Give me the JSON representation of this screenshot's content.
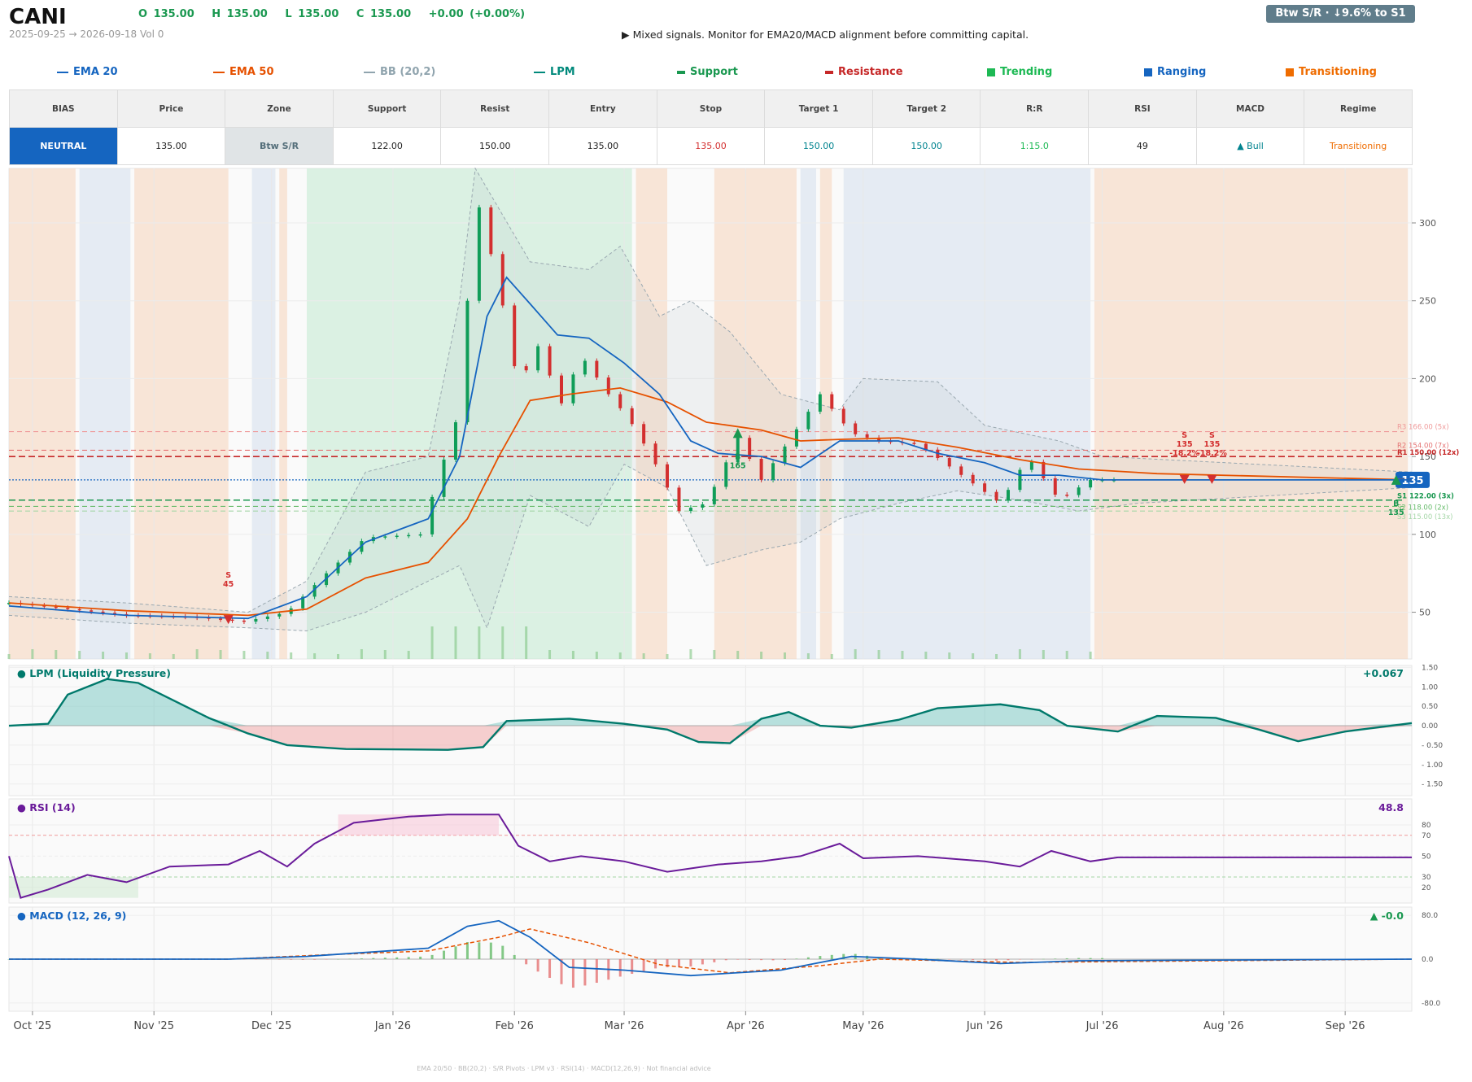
{
  "header": {
    "ticker": "CANI",
    "ohlc": {
      "o": "O 135.00",
      "h": "H 135.00",
      "l": "L 135.00",
      "c": "C 135.00",
      "chg": "+0.00  (+0.00%)"
    },
    "dates": "2025-09-25 → 2026-09-18   Vol 0",
    "signal": "▶  Mixed signals. Monitor for EMA20/MACD alignment before committing capital.",
    "badge": "Btw S/R  ·  ↓9.6% to S1"
  },
  "legend": [
    {
      "label": "EMA 20",
      "color": "#1565c0",
      "kind": "line"
    },
    {
      "label": "EMA 50",
      "color": "#e65100",
      "kind": "line"
    },
    {
      "label": "BB (20,2)",
      "color": "#90a4ae",
      "kind": "line"
    },
    {
      "label": "LPM",
      "color": "#00897b",
      "kind": "line"
    },
    {
      "label": "Support",
      "color": "#1a9850",
      "kind": "dash"
    },
    {
      "label": "Resistance",
      "color": "#c62828",
      "kind": "dash"
    },
    {
      "label": "Trending",
      "color": "#1db954",
      "kind": "box"
    },
    {
      "label": "Ranging",
      "color": "#1565c0",
      "kind": "box"
    },
    {
      "label": "Transitioning",
      "color": "#ef6c00",
      "kind": "box"
    }
  ],
  "summary": {
    "headers": [
      "BIAS",
      "Price",
      "Zone",
      "Support",
      "Resist",
      "Entry",
      "Stop",
      "Target 1",
      "Target 2",
      "R:R",
      "RSI",
      "MACD",
      "Regime"
    ],
    "values": [
      "NEUTRAL",
      "135.00",
      "Btw S/R",
      "122.00",
      "150.00",
      "135.00",
      "135.00",
      "150.00",
      "150.00",
      "1:15.0",
      "49",
      "▲ Bull",
      "Transitioning"
    ],
    "colors": [
      "#ffffff",
      "#222222",
      "#546e7a",
      "#222222",
      "#222222",
      "#222222",
      "#d32f2f",
      "#00838f",
      "#00838f",
      "#1db954",
      "#222222",
      "#00838f",
      "#ef6c00"
    ]
  },
  "chart_data": {
    "type": "candlestick",
    "x_range": [
      "2025-09-25",
      "2026-09-18"
    ],
    "x_ticks": [
      "Oct '25",
      "Nov '25",
      "Dec '25",
      "Jan '26",
      "Feb '26",
      "Mar '26",
      "Apr '26",
      "May '26",
      "Jun '26",
      "Jul '26",
      "Aug '26",
      "Sep '26"
    ],
    "price_axis": {
      "ylim": [
        20,
        335
      ],
      "ticks": [
        50,
        100,
        150,
        200,
        250,
        300
      ]
    },
    "last_price_label": "135",
    "close_points": [
      [
        "2025-09-25",
        56
      ],
      [
        "2025-10-10",
        52
      ],
      [
        "2025-10-25",
        48
      ],
      [
        "2025-11-10",
        47
      ],
      [
        "2025-11-24",
        44
      ],
      [
        "2025-12-05",
        50
      ],
      [
        "2025-12-15",
        75
      ],
      [
        "2025-12-25",
        98
      ],
      [
        "2026-01-08",
        100
      ],
      [
        "2026-01-18",
        180
      ],
      [
        "2026-01-22",
        320
      ],
      [
        "2026-01-28",
        260
      ],
      [
        "2026-02-02",
        195
      ],
      [
        "2026-02-08",
        226
      ],
      [
        "2026-02-12",
        178
      ],
      [
        "2026-02-18",
        215
      ],
      [
        "2026-02-25",
        190
      ],
      [
        "2026-03-02",
        175
      ],
      [
        "2026-03-08",
        150
      ],
      [
        "2026-03-15",
        115
      ],
      [
        "2026-03-22",
        120
      ],
      [
        "2026-03-30",
        162
      ],
      [
        "2026-04-05",
        135
      ],
      [
        "2026-04-12",
        160
      ],
      [
        "2026-04-20",
        190
      ],
      [
        "2026-04-28",
        165
      ],
      [
        "2026-05-05",
        160
      ],
      [
        "2026-05-15",
        158
      ],
      [
        "2026-05-25",
        140
      ],
      [
        "2026-06-05",
        120
      ],
      [
        "2026-06-12",
        150
      ],
      [
        "2026-06-20",
        122
      ],
      [
        "2026-06-28",
        135
      ],
      [
        "2026-09-18",
        135
      ]
    ],
    "ema20_points": [
      [
        "2025-09-25",
        54
      ],
      [
        "2025-10-25",
        48
      ],
      [
        "2025-11-25",
        46
      ],
      [
        "2025-12-10",
        60
      ],
      [
        "2025-12-25",
        95
      ],
      [
        "2026-01-10",
        110
      ],
      [
        "2026-01-18",
        150
      ],
      [
        "2026-01-25",
        240
      ],
      [
        "2026-01-30",
        265
      ],
      [
        "2026-02-05",
        248
      ],
      [
        "2026-02-12",
        228
      ],
      [
        "2026-02-20",
        226
      ],
      [
        "2026-03-01",
        210
      ],
      [
        "2026-03-10",
        190
      ],
      [
        "2026-03-18",
        160
      ],
      [
        "2026-03-25",
        152
      ],
      [
        "2026-04-05",
        150
      ],
      [
        "2026-04-15",
        143
      ],
      [
        "2026-04-25",
        160
      ],
      [
        "2026-05-10",
        160
      ],
      [
        "2026-05-20",
        152
      ],
      [
        "2026-06-01",
        146
      ],
      [
        "2026-06-10",
        138
      ],
      [
        "2026-06-20",
        138
      ],
      [
        "2026-07-01",
        135
      ],
      [
        "2026-09-18",
        135
      ]
    ],
    "ema50_points": [
      [
        "2025-09-25",
        56
      ],
      [
        "2025-10-25",
        51
      ],
      [
        "2025-11-25",
        48
      ],
      [
        "2025-12-10",
        52
      ],
      [
        "2025-12-25",
        72
      ],
      [
        "2026-01-10",
        82
      ],
      [
        "2026-01-20",
        110
      ],
      [
        "2026-01-28",
        150
      ],
      [
        "2026-02-05",
        186
      ],
      [
        "2026-02-15",
        190
      ],
      [
        "2026-02-28",
        194
      ],
      [
        "2026-03-12",
        185
      ],
      [
        "2026-03-22",
        172
      ],
      [
        "2026-04-05",
        167
      ],
      [
        "2026-04-15",
        160
      ],
      [
        "2026-04-25",
        161
      ],
      [
        "2026-05-10",
        162
      ],
      [
        "2026-05-25",
        156
      ],
      [
        "2026-06-10",
        148
      ],
      [
        "2026-06-25",
        142
      ],
      [
        "2026-07-15",
        139
      ],
      [
        "2026-09-18",
        135
      ]
    ],
    "bb_upper_points": [
      [
        "2025-09-25",
        60
      ],
      [
        "2025-10-25",
        56
      ],
      [
        "2025-11-25",
        50
      ],
      [
        "2025-12-10",
        70
      ],
      [
        "2025-12-25",
        140
      ],
      [
        "2026-01-10",
        150
      ],
      [
        "2026-01-18",
        250
      ],
      [
        "2026-01-22",
        335
      ],
      [
        "2026-02-05",
        275
      ],
      [
        "2026-02-20",
        270
      ],
      [
        "2026-02-28",
        285
      ],
      [
        "2026-03-10",
        240
      ],
      [
        "2026-03-18",
        250
      ],
      [
        "2026-03-28",
        230
      ],
      [
        "2026-04-10",
        190
      ],
      [
        "2026-04-25",
        180
      ],
      [
        "2026-05-01",
        200
      ],
      [
        "2026-05-20",
        198
      ],
      [
        "2026-06-01",
        170
      ],
      [
        "2026-06-20",
        160
      ],
      [
        "2026-07-01",
        150
      ],
      [
        "2026-09-18",
        140
      ]
    ],
    "bb_lower_points": [
      [
        "2025-09-25",
        48
      ],
      [
        "2025-10-25",
        43
      ],
      [
        "2025-11-25",
        40
      ],
      [
        "2025-12-10",
        38
      ],
      [
        "2025-12-25",
        50
      ],
      [
        "2026-01-10",
        70
      ],
      [
        "2026-01-18",
        80
      ],
      [
        "2026-01-25",
        40
      ],
      [
        "2026-02-05",
        125
      ],
      [
        "2026-02-20",
        105
      ],
      [
        "2026-03-01",
        145
      ],
      [
        "2026-03-12",
        130
      ],
      [
        "2026-03-22",
        80
      ],
      [
        "2026-04-05",
        90
      ],
      [
        "2026-04-15",
        95
      ],
      [
        "2026-04-25",
        110
      ],
      [
        "2026-05-10",
        120
      ],
      [
        "2026-05-25",
        128
      ],
      [
        "2026-06-10",
        122
      ],
      [
        "2026-06-25",
        115
      ],
      [
        "2026-07-10",
        120
      ],
      [
        "2026-09-18",
        130
      ]
    ],
    "levels": [
      {
        "label": "R3 166.00 (5x)",
        "value": 166,
        "color": "#ef9a9a",
        "dash": "6,4"
      },
      {
        "label": "R2 154.00 (7x)",
        "value": 154,
        "color": "#e57373",
        "dash": "6,4"
      },
      {
        "label": "R1 150.00 (12x)",
        "value": 150,
        "color": "#c62828",
        "dash": "8,4"
      },
      {
        "label": "S1 122.00 (3x)",
        "value": 122,
        "color": "#1a9850",
        "dash": "8,4"
      },
      {
        "label": "S2 118.00 (2x)",
        "value": 118,
        "color": "#66bb6a",
        "dash": "6,4"
      },
      {
        "label": "S3 115.00 (13x)",
        "value": 115,
        "color": "#a5d6a7",
        "dash": "6,4"
      }
    ],
    "current_price": 135,
    "regimes": [
      {
        "start": "2025-09-25",
        "end": "2025-10-12",
        "type": "Transitioning"
      },
      {
        "start": "2025-10-13",
        "end": "2025-10-26",
        "type": "Ranging"
      },
      {
        "start": "2025-10-27",
        "end": "2025-11-20",
        "type": "Transitioning"
      },
      {
        "start": "2025-11-26",
        "end": "2025-12-02",
        "type": "Ranging"
      },
      {
        "start": "2025-12-03",
        "end": "2025-12-05",
        "type": "Transitioning"
      },
      {
        "start": "2025-12-10",
        "end": "2026-03-03",
        "type": "Trending"
      },
      {
        "start": "2026-03-04",
        "end": "2026-03-12",
        "type": "Transitioning"
      },
      {
        "start": "2026-03-24",
        "end": "2026-04-14",
        "type": "Transitioning"
      },
      {
        "start": "2026-04-15",
        "end": "2026-04-19",
        "type": "Ranging"
      },
      {
        "start": "2026-04-20",
        "end": "2026-04-23",
        "type": "Transitioning"
      },
      {
        "start": "2026-04-26",
        "end": "2026-06-28",
        "type": "Ranging"
      },
      {
        "start": "2026-06-29",
        "end": "2026-09-17",
        "type": "Transitioning"
      }
    ],
    "markers": [
      {
        "date": "2025-11-20",
        "price": 45,
        "side": "sell",
        "text": [
          "S",
          "45"
        ]
      },
      {
        "date": "2026-03-30",
        "price": 165,
        "side": "buy",
        "text": [
          "B",
          "165"
        ]
      },
      {
        "date": "2026-07-22",
        "price": 135,
        "side": "sell",
        "text": [
          "S",
          "135",
          "-18.2%"
        ]
      },
      {
        "date": "2026-07-29",
        "price": 135,
        "side": "sell",
        "text": [
          "S",
          "135",
          "-18.2%"
        ]
      },
      {
        "date": "2026-09-14",
        "price": 135,
        "side": "buy",
        "text": [
          "B",
          "135"
        ]
      }
    ],
    "lpm": {
      "title": "● LPM (Liquidity Pressure)",
      "value_label": "+0.067",
      "ylim": [
        -1.8,
        1.55
      ],
      "ticks": [
        1.5,
        1.0,
        0.5,
        0.0,
        -0.5,
        -1.0,
        -1.5
      ],
      "tick_labels": [
        "1.50",
        "1.00",
        "0.50",
        "0.00",
        "- 0.50",
        "- 1.00",
        "- 1.50"
      ],
      "points": [
        [
          "2025-09-25",
          0
        ],
        [
          "2025-10-05",
          0.05
        ],
        [
          "2025-10-10",
          0.8
        ],
        [
          "2025-10-20",
          1.2
        ],
        [
          "2025-10-28",
          1.1
        ],
        [
          "2025-11-05",
          0.7
        ],
        [
          "2025-11-15",
          0.2
        ],
        [
          "2025-11-25",
          -0.2
        ],
        [
          "2025-12-05",
          -0.5
        ],
        [
          "2025-12-20",
          -0.6
        ],
        [
          "2026-01-15",
          -0.62
        ],
        [
          "2026-01-24",
          -0.55
        ],
        [
          "2026-01-30",
          0.12
        ],
        [
          "2026-02-15",
          0.18
        ],
        [
          "2026-03-01",
          0.05
        ],
        [
          "2026-03-12",
          -0.1
        ],
        [
          "2026-03-20",
          -0.42
        ],
        [
          "2026-03-28",
          -0.45
        ],
        [
          "2026-04-05",
          0.18
        ],
        [
          "2026-04-12",
          0.35
        ],
        [
          "2026-04-20",
          0.0
        ],
        [
          "2026-04-28",
          -0.05
        ],
        [
          "2026-05-10",
          0.15
        ],
        [
          "2026-05-20",
          0.45
        ],
        [
          "2026-06-05",
          0.55
        ],
        [
          "2026-06-15",
          0.4
        ],
        [
          "2026-06-22",
          0.0
        ],
        [
          "2026-07-05",
          -0.15
        ],
        [
          "2026-07-15",
          0.25
        ],
        [
          "2026-07-30",
          0.2
        ],
        [
          "2026-08-10",
          -0.1
        ],
        [
          "2026-08-20",
          -0.4
        ],
        [
          "2026-09-01",
          -0.15
        ],
        [
          "2026-09-18",
          0.067
        ]
      ]
    },
    "rsi": {
      "title": "● RSI (14)",
      "value_label": "48.8",
      "ylim": [
        5,
        105
      ],
      "ticks": [
        80,
        70,
        50,
        30,
        20
      ],
      "points": [
        [
          "2025-09-25",
          50
        ],
        [
          "2025-09-28",
          10
        ],
        [
          "2025-10-05",
          18
        ],
        [
          "2025-10-15",
          32
        ],
        [
          "2025-10-25",
          25
        ],
        [
          "2025-11-05",
          40
        ],
        [
          "2025-11-20",
          42
        ],
        [
          "2025-11-28",
          55
        ],
        [
          "2025-12-05",
          40
        ],
        [
          "2025-12-12",
          62
        ],
        [
          "2025-12-22",
          82
        ],
        [
          "2026-01-05",
          88
        ],
        [
          "2026-01-15",
          90
        ],
        [
          "2026-01-28",
          90
        ],
        [
          "2026-02-02",
          60
        ],
        [
          "2026-02-10",
          45
        ],
        [
          "2026-02-18",
          50
        ],
        [
          "2026-03-01",
          45
        ],
        [
          "2026-03-12",
          35
        ],
        [
          "2026-03-25",
          42
        ],
        [
          "2026-04-05",
          45
        ],
        [
          "2026-04-15",
          50
        ],
        [
          "2026-04-25",
          62
        ],
        [
          "2026-05-01",
          48
        ],
        [
          "2026-05-15",
          50
        ],
        [
          "2026-06-01",
          45
        ],
        [
          "2026-06-10",
          40
        ],
        [
          "2026-06-18",
          55
        ],
        [
          "2026-06-28",
          45
        ],
        [
          "2026-07-05",
          48.8
        ],
        [
          "2026-09-18",
          48.8
        ]
      ]
    },
    "macd": {
      "title": "● MACD (12, 26, 9)",
      "value_label": "▲ -0.0",
      "ylim": [
        -95,
        95
      ],
      "ticks": [
        80,
        0,
        -80
      ],
      "tick_labels": [
        "80.0",
        "0.0",
        "-80.0"
      ],
      "macd_points": [
        [
          "2025-09-25",
          0
        ],
        [
          "2025-11-20",
          0
        ],
        [
          "2025-12-10",
          5
        ],
        [
          "2026-01-10",
          20
        ],
        [
          "2026-01-20",
          60
        ],
        [
          "2026-01-28",
          70
        ],
        [
          "2026-02-05",
          40
        ],
        [
          "2026-02-15",
          -15
        ],
        [
          "2026-03-01",
          -20
        ],
        [
          "2026-03-18",
          -30
        ],
        [
          "2026-04-10",
          -20
        ],
        [
          "2026-04-28",
          5
        ],
        [
          "2026-05-15",
          0
        ],
        [
          "2026-06-05",
          -8
        ],
        [
          "2026-06-25",
          -3
        ],
        [
          "2026-09-18",
          0
        ]
      ],
      "signal_points": [
        [
          "2025-09-25",
          0
        ],
        [
          "2025-11-20",
          0
        ],
        [
          "2025-12-15",
          8
        ],
        [
          "2026-01-10",
          15
        ],
        [
          "2026-01-28",
          40
        ],
        [
          "2026-02-05",
          55
        ],
        [
          "2026-02-20",
          30
        ],
        [
          "2026-03-10",
          -10
        ],
        [
          "2026-03-28",
          -25
        ],
        [
          "2026-04-20",
          -12
        ],
        [
          "2026-05-05",
          0
        ],
        [
          "2026-06-10",
          -6
        ],
        [
          "2026-09-18",
          0
        ]
      ]
    }
  },
  "footer": "EMA 20/50  ·  BB(20,2)  ·  S/R Pivots  ·  LPM v3  ·  RSI(14)  ·  MACD(12,26,9)  ·  Not financial advice"
}
